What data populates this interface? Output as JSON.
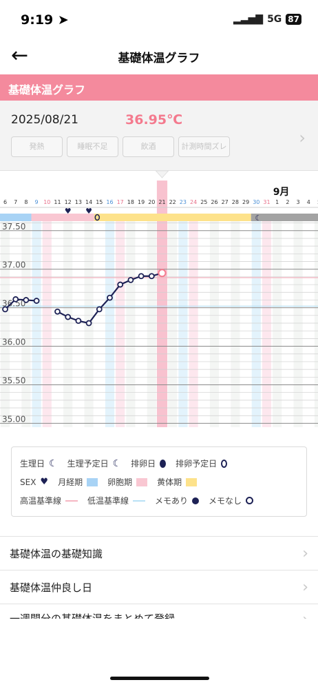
{
  "status": {
    "time": "9:19",
    "network": "5G",
    "battery": "87"
  },
  "nav": {
    "title": "基礎体温グラフ"
  },
  "section": {
    "title": "基礎体温グラフ"
  },
  "day": {
    "date": "2025/08/21",
    "temp": "36.95℃"
  },
  "tags": [
    "発熱",
    "睡眠不足",
    "飲酒",
    "計測時間ズレ"
  ],
  "colors": {
    "accent": "#f48a9d",
    "menstruation": "#a8d3f5",
    "follicular": "#f9c7d2",
    "luteal": "#fde28b",
    "predicted": "#a3a3a3",
    "line": "#1d2155",
    "selected": "#f6adbf"
  },
  "chart_data": {
    "type": "line",
    "month_label": "9月",
    "days": [
      "6",
      "7",
      "8",
      "9",
      "10",
      "11",
      "12",
      "13",
      "14",
      "15",
      "16",
      "17",
      "18",
      "19",
      "20",
      "21",
      "22",
      "23",
      "24",
      "25",
      "26",
      "27",
      "28",
      "29",
      "30",
      "31",
      "1",
      "2",
      "3",
      "4",
      "5"
    ],
    "y_ticks": [
      "37.50",
      "37.00",
      "36.50",
      "36.00",
      "35.50",
      "35.00"
    ],
    "ylim": [
      34.95,
      37.65
    ],
    "high_line": 36.89,
    "low_line": 36.52,
    "series": [
      {
        "segments": [
          [
            [
              "6",
              36.48
            ],
            [
              "7",
              36.61
            ],
            [
              "8",
              36.6
            ],
            [
              "9",
              36.59
            ]
          ],
          [
            [
              "11",
              36.45
            ],
            [
              "12",
              36.38
            ],
            [
              "13",
              36.33
            ],
            [
              "14",
              36.3
            ],
            [
              "15",
              36.48
            ],
            [
              "16",
              36.63
            ],
            [
              "17",
              36.8
            ],
            [
              "18",
              36.86
            ],
            [
              "19",
              36.91
            ],
            [
              "20",
              36.91
            ],
            [
              "21",
              36.95
            ]
          ]
        ]
      }
    ],
    "sex_days": [
      "12",
      "14"
    ],
    "phases": [
      {
        "phase": "menstruation",
        "from": "6",
        "to": "8"
      },
      {
        "phase": "follicular",
        "from": "9",
        "to": "14"
      },
      {
        "phase": "luteal",
        "from": "15",
        "to": "29"
      },
      {
        "phase": "predicted",
        "from": "30",
        "to": "5"
      }
    ],
    "ovulation_predicted_day": "15",
    "period_predicted_day": "30",
    "selected_day": "21"
  },
  "legend": {
    "row1": [
      "生理日",
      "生理予定日",
      "排卵日",
      "排卵予定日"
    ],
    "row2": [
      "SEX",
      "月経期",
      "卵胞期",
      "黄体期"
    ],
    "row3": [
      "高温基準線",
      "低温基準線",
      "メモあり",
      "メモなし"
    ]
  },
  "menu": [
    "基礎体温の基礎知識",
    "基礎体温仲良し日",
    "一週間分の基礎体温をまとめて登録"
  ]
}
